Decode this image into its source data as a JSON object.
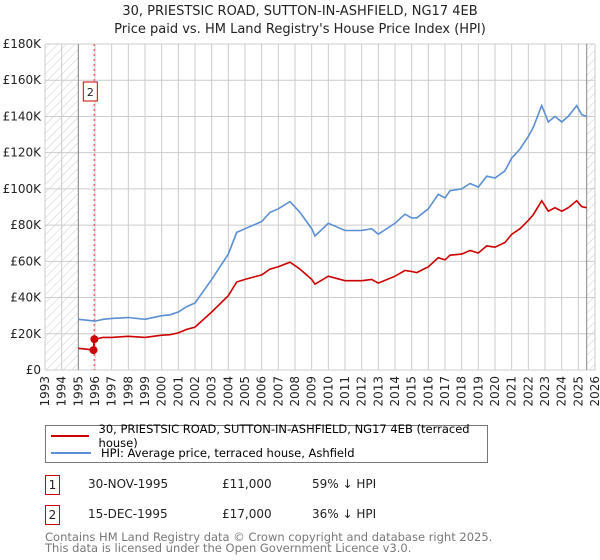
{
  "title_line1": "30, PRIESTSIC ROAD, SUTTON-IN-ASHFIELD, NG17 4EB",
  "title_line2": "Price paid vs. HM Land Registry's House Price Index (HPI)",
  "chart_data": {
    "type": "line",
    "title": "30, PRIESTSIC ROAD, SUTTON-IN-ASHFIELD, NG17 4EB — Price paid vs. HM Land Registry's House Price Index (HPI)",
    "xlim": [
      1993,
      2026
    ],
    "ylim": [
      0,
      180000
    ],
    "x_ticks": [
      "1993",
      "1994",
      "1995",
      "1996",
      "1997",
      "1998",
      "1999",
      "2000",
      "2001",
      "2002",
      "2003",
      "2004",
      "2005",
      "2006",
      "2007",
      "2008",
      "2009",
      "2010",
      "2011",
      "2012",
      "2013",
      "2014",
      "2015",
      "2016",
      "2017",
      "2018",
      "2019",
      "2020",
      "2021",
      "2022",
      "2023",
      "2024",
      "2025",
      "2026"
    ],
    "y_ticks": [
      {
        "v": 0,
        "label": "£0"
      },
      {
        "v": 20000,
        "label": "£20K"
      },
      {
        "v": 40000,
        "label": "£40K"
      },
      {
        "v": 60000,
        "label": "£60K"
      },
      {
        "v": 80000,
        "label": "£80K"
      },
      {
        "v": 100000,
        "label": "£100K"
      },
      {
        "v": 120000,
        "label": "£120K"
      },
      {
        "v": 140000,
        "label": "£140K"
      },
      {
        "v": 160000,
        "label": "£160K"
      },
      {
        "v": 180000,
        "label": "£180K"
      }
    ],
    "grid": true,
    "hatched_ranges": [
      [
        1993,
        1995
      ],
      [
        2025.5,
        2026
      ]
    ],
    "series": [
      {
        "name": "30, PRIESTSIC ROAD, SUTTON-IN-ASHFIELD, NG17 4EB (terraced house)",
        "color": "#cc0000",
        "x": [
          1995,
          1995.5,
          1995.91,
          1995.96,
          1996,
          1996.5,
          1997,
          1998,
          1999,
          2000,
          2000.5,
          2001,
          2001.5,
          2002,
          2003,
          2004,
          2004.5,
          2005,
          2006,
          2006.5,
          2007,
          2007.7,
          2008.3,
          2009,
          2009.2,
          2010,
          2011,
          2012,
          2012.6,
          2013,
          2014,
          2014.6,
          2015,
          2015.3,
          2016,
          2016.6,
          2017,
          2017.3,
          2018,
          2018.5,
          2019,
          2019.5,
          2020,
          2020.6,
          2021,
          2021.5,
          2022,
          2022.3,
          2022.8,
          2023.2,
          2023.6,
          2024,
          2024.4,
          2024.9,
          2025.2,
          2025.5
        ],
        "y": [
          12000,
          11500,
          11000,
          17000,
          17000,
          18000,
          18000,
          18600,
          18000,
          19200,
          19500,
          20500,
          22400,
          23700,
          32000,
          41000,
          48600,
          50000,
          52500,
          55700,
          57000,
          59500,
          55700,
          50000,
          47400,
          51800,
          49300,
          49300,
          50000,
          48000,
          51800,
          55000,
          54400,
          53800,
          57000,
          62000,
          60800,
          63400,
          64000,
          66000,
          64600,
          68500,
          67800,
          70400,
          74900,
          78000,
          82600,
          85800,
          93400,
          87700,
          89600,
          87700,
          89600,
          93400,
          90200,
          89600
        ]
      },
      {
        "name": "HPI: Average price, terraced house, Ashfield",
        "color": "#5b8fd4",
        "x": [
          1995,
          1995.5,
          1996,
          1996.5,
          1997,
          1998,
          1999,
          2000,
          2000.5,
          2001,
          2001.5,
          2002,
          2003,
          2004,
          2004.5,
          2005,
          2006,
          2006.5,
          2007,
          2007.7,
          2008.3,
          2009,
          2009.2,
          2010,
          2011,
          2012,
          2012.6,
          2013,
          2014,
          2014.6,
          2015,
          2015.3,
          2016,
          2016.6,
          2017,
          2017.3,
          2018,
          2018.5,
          2019,
          2019.5,
          2020,
          2020.6,
          2021,
          2021.5,
          2022,
          2022.3,
          2022.8,
          2023.2,
          2023.6,
          2024,
          2024.4,
          2024.9,
          2025.2,
          2025.5
        ],
        "y": [
          28000,
          27500,
          27000,
          28000,
          28500,
          29000,
          28000,
          30000,
          30500,
          32000,
          35000,
          37000,
          50000,
          64000,
          76000,
          78000,
          82000,
          87000,
          89000,
          93000,
          87000,
          78000,
          74000,
          81000,
          77000,
          77000,
          78000,
          75000,
          81000,
          86000,
          84000,
          84000,
          89000,
          97000,
          95000,
          99000,
          100000,
          103000,
          101000,
          107000,
          106000,
          110000,
          117000,
          122000,
          129000,
          134000,
          146000,
          137000,
          140000,
          137000,
          140000,
          146000,
          141000,
          140000
        ]
      }
    ],
    "transactions": [
      {
        "label": "1",
        "x": 1995.91,
        "y": 11000
      },
      {
        "label": "2",
        "x": 1995.96,
        "y": 17000
      }
    ],
    "annotation_label": "2",
    "legend_position": "below"
  },
  "legend": {
    "items": [
      {
        "label": "30, PRIESTSIC ROAD, SUTTON-IN-ASHFIELD, NG17 4EB (terraced house)",
        "color": "#cc0000"
      },
      {
        "label": "HPI: Average price, terraced house, Ashfield",
        "color": "#5b8fd4"
      }
    ]
  },
  "transactions_table": [
    {
      "num": "1",
      "date": "30-NOV-1995",
      "price": "£11,000",
      "hpi": "59% ↓ HPI"
    },
    {
      "num": "2",
      "date": "15-DEC-1995",
      "price": "£17,000",
      "hpi": "36% ↓ HPI"
    }
  ],
  "footer": {
    "line1": "Contains HM Land Registry data © Crown copyright and database right 2025.",
    "line2": "This data is licensed under the Open Government Licence v3.0."
  }
}
